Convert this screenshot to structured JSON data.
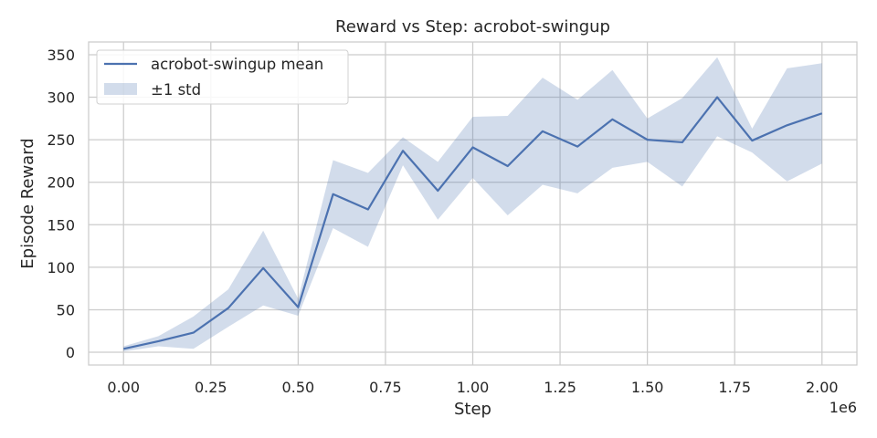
{
  "chart_data": {
    "type": "line",
    "title": "Reward vs Step: acrobot-swingup",
    "xlabel": "Step",
    "ylabel": "Episode Reward",
    "x_offset_label": "1e6",
    "xlim": [
      -0.1,
      2.1
    ],
    "ylim": [
      -15,
      365
    ],
    "grid": true,
    "legend_position": "upper-left",
    "xticks": [
      0.0,
      0.25,
      0.5,
      0.75,
      1.0,
      1.25,
      1.5,
      1.75,
      2.0
    ],
    "xtick_labels": [
      "0.00",
      "0.25",
      "0.50",
      "0.75",
      "1.00",
      "1.25",
      "1.50",
      "1.75",
      "2.00"
    ],
    "yticks": [
      0,
      50,
      100,
      150,
      200,
      250,
      300,
      350
    ],
    "ytick_labels": [
      "0",
      "50",
      "100",
      "150",
      "200",
      "250",
      "300",
      "350"
    ],
    "x": [
      0.0,
      0.1,
      0.2,
      0.3,
      0.4,
      0.5,
      0.6,
      0.7,
      0.8,
      0.9,
      1.0,
      1.1,
      1.2,
      1.3,
      1.4,
      1.5,
      1.6,
      1.7,
      1.8,
      1.9,
      2.0
    ],
    "series": [
      {
        "name": "acrobot-swingup mean",
        "color": "#4c72b0",
        "values": [
          4,
          13,
          23,
          52,
          99,
          53,
          186,
          168,
          237,
          190,
          241,
          219,
          260,
          242,
          274,
          250,
          247,
          300,
          249,
          267,
          281
        ]
      }
    ],
    "band": {
      "name": "±1 std",
      "color": "#4c72b0",
      "opacity": 0.25,
      "upper": [
        7,
        19,
        42,
        74,
        143,
        63,
        226,
        211,
        253,
        224,
        277,
        278,
        323,
        297,
        332,
        275,
        299,
        347,
        263,
        334,
        340
      ],
      "lower": [
        1,
        7,
        4,
        30,
        55,
        43,
        146,
        124,
        220,
        156,
        205,
        161,
        197,
        187,
        217,
        224,
        195,
        254,
        235,
        201,
        222
      ]
    }
  }
}
